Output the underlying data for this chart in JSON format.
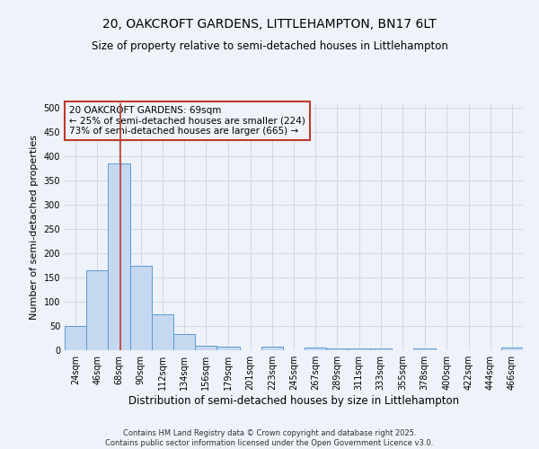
{
  "title": "20, OAKCROFT GARDENS, LITTLEHAMPTON, BN17 6LT",
  "subtitle": "Size of property relative to semi-detached houses in Littlehampton",
  "xlabel": "Distribution of semi-detached houses by size in Littlehampton",
  "ylabel": "Number of semi-detached properties",
  "bar_color": "#c5d8f0",
  "bar_edge_color": "#5b9bd5",
  "grid_color": "#d0d8e8",
  "background_color": "#eef2f9",
  "bin_labels": [
    "24sqm",
    "46sqm",
    "68sqm",
    "90sqm",
    "112sqm",
    "134sqm",
    "156sqm",
    "179sqm",
    "201sqm",
    "223sqm",
    "245sqm",
    "267sqm",
    "289sqm",
    "311sqm",
    "333sqm",
    "355sqm",
    "378sqm",
    "400sqm",
    "422sqm",
    "444sqm",
    "466sqm"
  ],
  "bin_edges": [
    13,
    35,
    57,
    79,
    101,
    123,
    145,
    167,
    190,
    212,
    234,
    256,
    278,
    300,
    322,
    344,
    366,
    389,
    411,
    433,
    455,
    477
  ],
  "bar_heights": [
    50,
    165,
    385,
    175,
    75,
    33,
    10,
    8,
    0,
    8,
    0,
    5,
    3,
    3,
    3,
    0,
    3,
    0,
    0,
    0,
    5
  ],
  "vline_x": 69,
  "vline_color": "#c0392b",
  "annotation_text": "20 OAKCROFT GARDENS: 69sqm\n← 25% of semi-detached houses are smaller (224)\n73% of semi-detached houses are larger (665) →",
  "annotation_box_color": "#c0392b",
  "ylim": [
    0,
    510
  ],
  "yticks": [
    0,
    50,
    100,
    150,
    200,
    250,
    300,
    350,
    400,
    450,
    500
  ],
  "footer_text": "Contains HM Land Registry data © Crown copyright and database right 2025.\nContains public sector information licensed under the Open Government Licence v3.0.",
  "title_fontsize": 10,
  "subtitle_fontsize": 8.5,
  "xlabel_fontsize": 8.5,
  "ylabel_fontsize": 8,
  "tick_fontsize": 7,
  "annotation_fontsize": 7.5,
  "footer_fontsize": 6
}
